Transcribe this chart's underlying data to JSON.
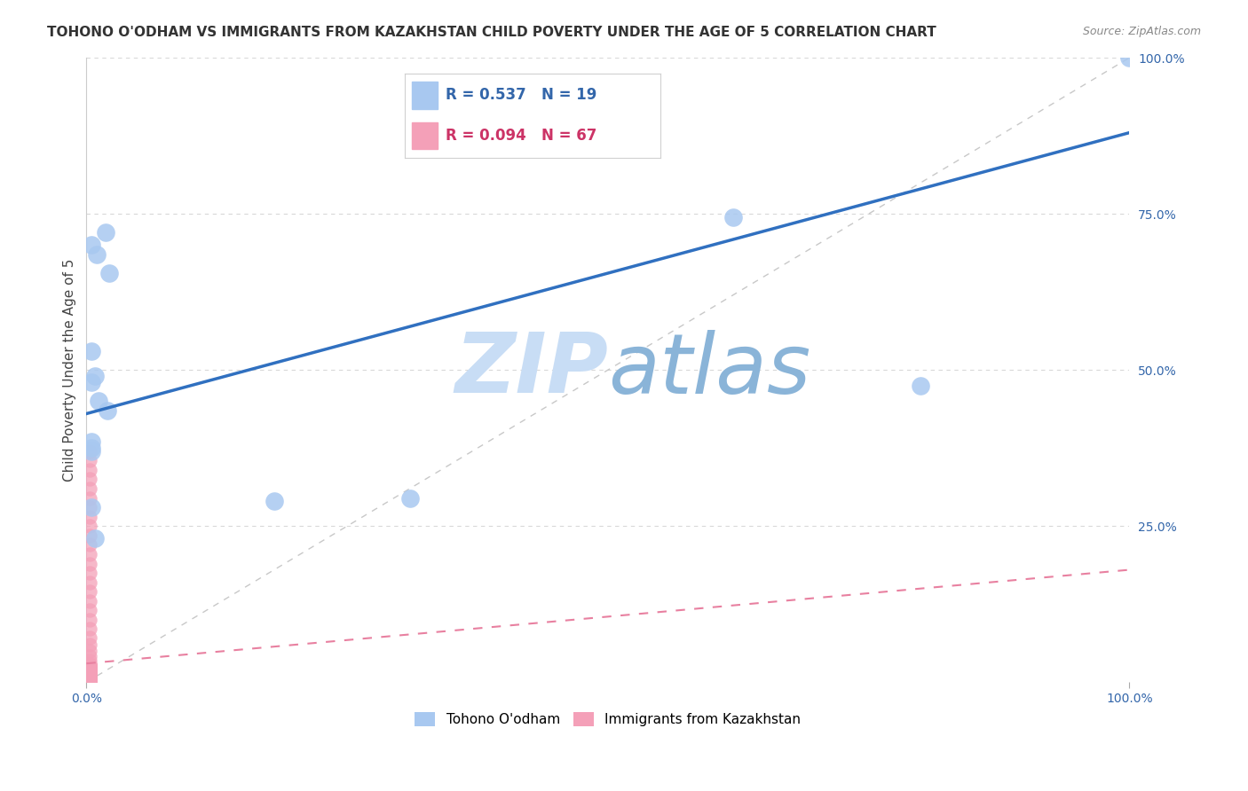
{
  "title": "TOHONO O'ODHAM VS IMMIGRANTS FROM KAZAKHSTAN CHILD POVERTY UNDER THE AGE OF 5 CORRELATION CHART",
  "source": "Source: ZipAtlas.com",
  "ylabel": "Child Poverty Under the Age of 5",
  "blue_R": 0.537,
  "blue_N": 19,
  "pink_R": 0.094,
  "pink_N": 67,
  "blue_color": "#a8c8f0",
  "pink_color": "#f4a0b8",
  "blue_line_color": "#3070c0",
  "pink_line_color": "#e880a0",
  "diag_line_color": "#c8c8c8",
  "grid_color": "#d8d8d8",
  "watermark_zip_color": "#c8ddf5",
  "watermark_atlas_color": "#8ab4d8",
  "background_color": "#ffffff",
  "xlim": [
    0,
    1.0
  ],
  "ylim": [
    0,
    1.0
  ],
  "blue_line_x0": 0.0,
  "blue_line_y0": 0.43,
  "blue_line_x1": 1.0,
  "blue_line_y1": 0.88,
  "pink_line_x0": 0.0,
  "pink_line_y0": 0.03,
  "pink_line_x1": 1.0,
  "pink_line_y1": 0.18,
  "blue_points_x": [
    0.005,
    0.01,
    0.018,
    0.022,
    0.005,
    0.008,
    0.005,
    0.012,
    0.02,
    0.005,
    0.005,
    0.005,
    0.005,
    0.18,
    0.31,
    0.62,
    0.8,
    1.0,
    0.008
  ],
  "blue_points_y": [
    0.7,
    0.685,
    0.72,
    0.655,
    0.53,
    0.49,
    0.48,
    0.45,
    0.435,
    0.385,
    0.375,
    0.37,
    0.28,
    0.29,
    0.295,
    0.745,
    0.475,
    1.0,
    0.23
  ],
  "pink_points_x": [
    0.003,
    0.003,
    0.003,
    0.003,
    0.003,
    0.003,
    0.003,
    0.003,
    0.003,
    0.003,
    0.003,
    0.003,
    0.003,
    0.003,
    0.003,
    0.003,
    0.003,
    0.003,
    0.003,
    0.003,
    0.003,
    0.003,
    0.003,
    0.003,
    0.003,
    0.003,
    0.003,
    0.003,
    0.003,
    0.003,
    0.003,
    0.003,
    0.003,
    0.003,
    0.003,
    0.003,
    0.003,
    0.003,
    0.003,
    0.003,
    0.003,
    0.003,
    0.003,
    0.003,
    0.003,
    0.003,
    0.003,
    0.003,
    0.003,
    0.003,
    0.003,
    0.003,
    0.003,
    0.003,
    0.003,
    0.003,
    0.003,
    0.003,
    0.003,
    0.003,
    0.003,
    0.003,
    0.003,
    0.003,
    0.003,
    0.003,
    0.003
  ],
  "pink_points_y": [
    0.37,
    0.355,
    0.34,
    0.325,
    0.31,
    0.295,
    0.28,
    0.265,
    0.25,
    0.235,
    0.22,
    0.205,
    0.19,
    0.175,
    0.16,
    0.145,
    0.13,
    0.115,
    0.1,
    0.085,
    0.072,
    0.06,
    0.05,
    0.042,
    0.035,
    0.028,
    0.022,
    0.017,
    0.013,
    0.01,
    0.008,
    0.006,
    0.005,
    0.004,
    0.003,
    0.002,
    0.001,
    0.0,
    0.001,
    0.002,
    0.003,
    0.004,
    0.005,
    0.006,
    0.007,
    0.008,
    0.009,
    0.01,
    0.011,
    0.012,
    0.013,
    0.014,
    0.015,
    0.016,
    0.017,
    0.018,
    0.019,
    0.02,
    0.021,
    0.022,
    0.023,
    0.024,
    0.025,
    0.026,
    0.027,
    0.028,
    0.029
  ]
}
